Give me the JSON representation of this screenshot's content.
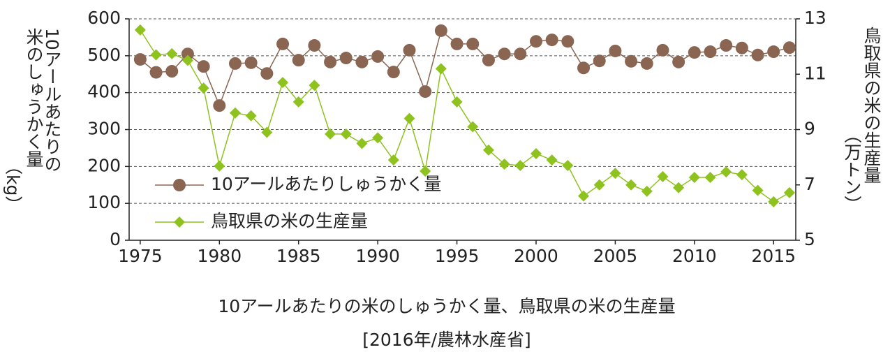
{
  "chart_data": {
    "type": "line",
    "title": "10アールあたりの米のしゅうかく量、鳥取県の米の生産量",
    "subtitle": "[2016年/農林水産省]",
    "ylabel": [
      "10アールあたりの",
      "米のしゅうかく量",
      "（kg）"
    ],
    "y2label": [
      "鳥取県の米の生産量",
      "（万トン）"
    ],
    "x": [
      1975,
      1976,
      1977,
      1978,
      1979,
      1980,
      1981,
      1982,
      1983,
      1984,
      1985,
      1986,
      1987,
      1988,
      1989,
      1990,
      1991,
      1992,
      1993,
      1994,
      1995,
      1996,
      1997,
      1998,
      1999,
      2000,
      2001,
      2002,
      2003,
      2004,
      2005,
      2006,
      2007,
      2008,
      2009,
      2010,
      2011,
      2012,
      2013,
      2014,
      2015,
      2016
    ],
    "series": [
      {
        "name": "10アールあたりしゅうかく量",
        "color": "#8a6552",
        "marker": "circle",
        "values": [
          490,
          455,
          458,
          505,
          471,
          365,
          479,
          481,
          452,
          532,
          488,
          528,
          483,
          494,
          483,
          498,
          456,
          515,
          403,
          568,
          532,
          532,
          488,
          505,
          505,
          539,
          543,
          539,
          467,
          486,
          513,
          485,
          479,
          515,
          483,
          509,
          511,
          528,
          521,
          502,
          511,
          522
        ]
      },
      {
        "name": "鳥取県の米の生産量",
        "color": "#8dc21f",
        "marker": "diamond",
        "axis": "y2",
        "values": [
          12.6,
          11.7,
          11.74,
          11.5,
          10.5,
          7.68,
          9.6,
          9.5,
          8.9,
          10.7,
          10.0,
          10.6,
          8.84,
          8.84,
          8.5,
          8.7,
          7.9,
          9.4,
          7.5,
          11.2,
          10.0,
          9.1,
          8.26,
          7.75,
          7.7,
          8.13,
          7.9,
          7.7,
          6.6,
          7.0,
          7.42,
          7.0,
          6.77,
          7.3,
          6.9,
          7.27,
          7.27,
          7.47,
          7.37,
          6.8,
          6.39,
          6.72
        ]
      }
    ],
    "xlim": [
      1974.3,
      2016.4
    ],
    "xticks": [
      1975,
      1980,
      1985,
      1990,
      1995,
      2000,
      2005,
      2010,
      2015
    ],
    "ylim": [
      0,
      600
    ],
    "yticks": [
      0,
      100,
      200,
      300,
      400,
      500,
      600
    ],
    "y2lim": [
      5,
      13
    ],
    "y2ticks": [
      5,
      7,
      9,
      11,
      13
    ],
    "grid": true,
    "legend": "lower left"
  }
}
